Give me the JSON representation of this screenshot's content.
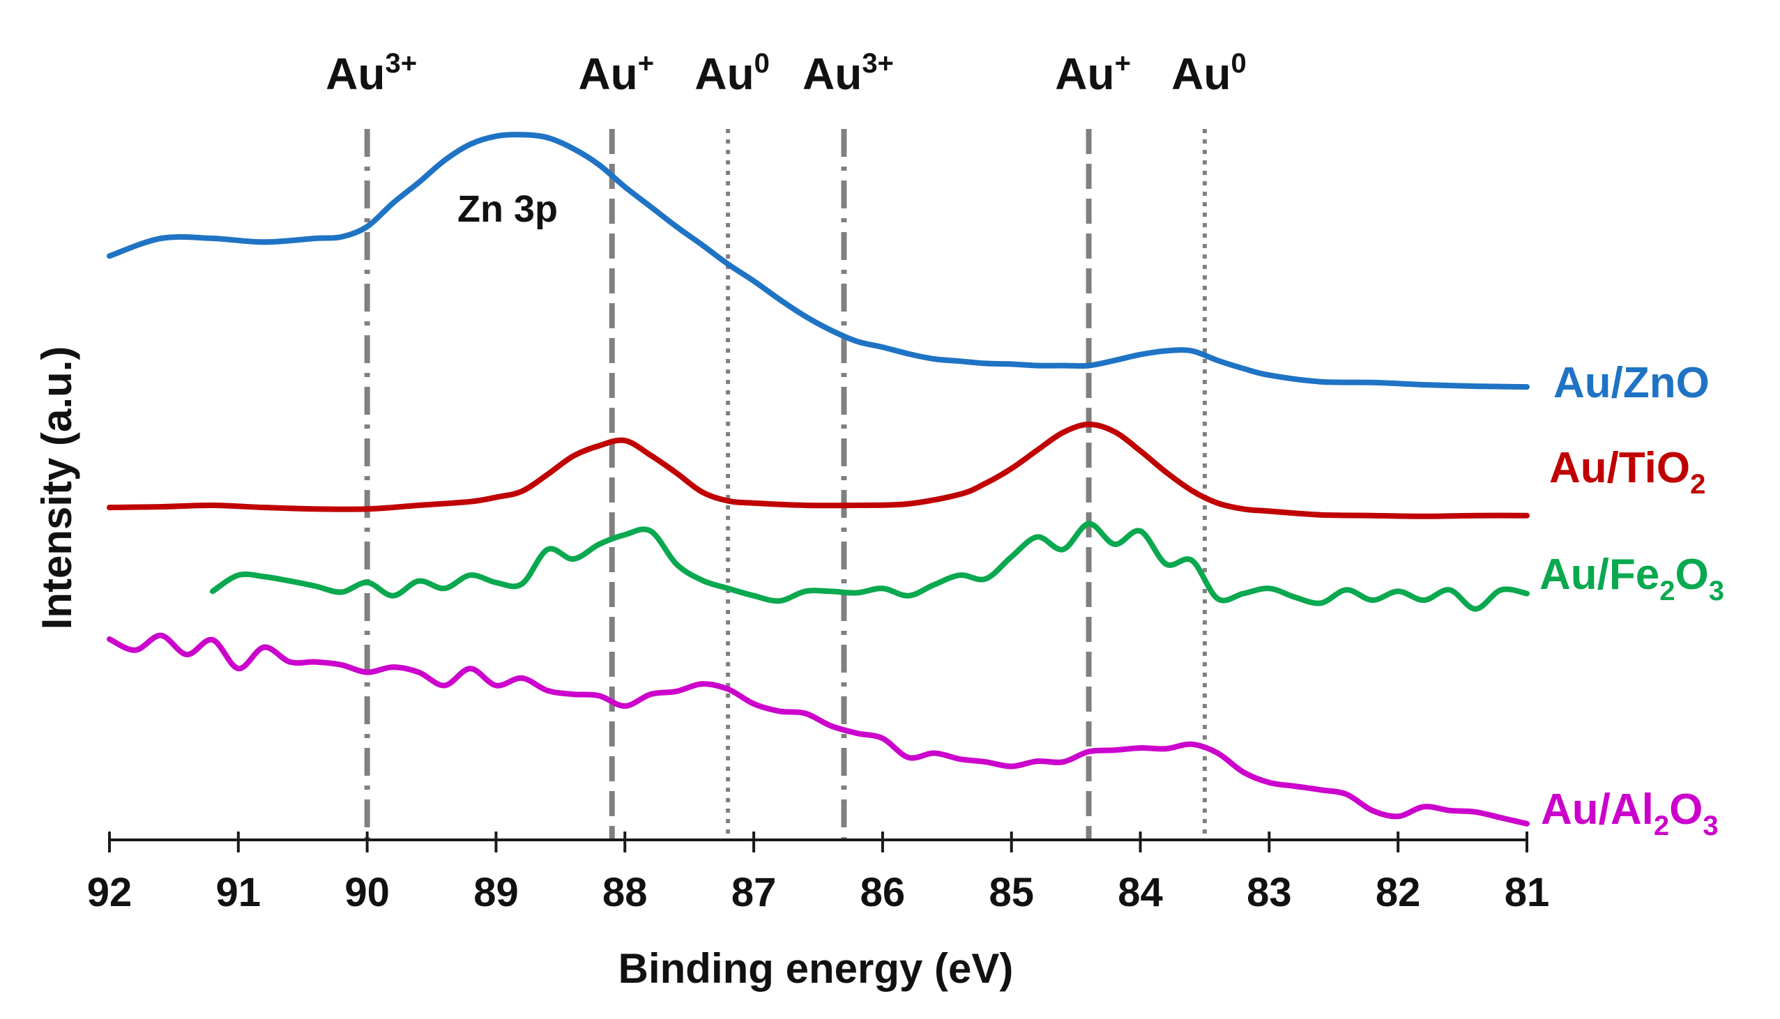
{
  "chart_data": {
    "type": "line",
    "title": "",
    "xlabel": "Binding energy (eV)",
    "ylabel": "Intensity (a.u.)",
    "xlim": [
      92,
      81
    ],
    "x_reversed": true,
    "ylim": [
      0,
      10
    ],
    "x_ticks": [
      "92",
      "91",
      "90",
      "89",
      "88",
      "87",
      "86",
      "85",
      "84",
      "83",
      "82",
      "81"
    ],
    "y_ticks_shown": false,
    "annotations": [
      {
        "text": "Zn 3p",
        "x": 88.8,
        "y": 8.1
      }
    ],
    "reference_lines": [
      {
        "x": 90.0,
        "style": "dash-dot",
        "label_base": "Au",
        "label_sup": "3+"
      },
      {
        "x": 88.1,
        "style": "dashed",
        "label_base": "Au",
        "label_sup": "+"
      },
      {
        "x": 87.2,
        "style": "dotted",
        "label_base": "Au",
        "label_sup": "0"
      },
      {
        "x": 86.3,
        "style": "dash-dot",
        "label_base": "Au",
        "label_sup": "3+"
      },
      {
        "x": 84.4,
        "style": "dashed",
        "label_base": "Au",
        "label_sup": "+"
      },
      {
        "x": 83.5,
        "style": "dotted",
        "label_base": "Au",
        "label_sup": "0"
      }
    ],
    "series": [
      {
        "name": "Au/ZnO",
        "label_parts": [
          {
            "t": "Au/ZnO"
          }
        ],
        "color": "#1f73c4",
        "x": [
          92.0,
          91.6,
          91.2,
          90.8,
          90.4,
          90.2,
          90.0,
          89.8,
          89.6,
          89.4,
          89.2,
          89.0,
          88.8,
          88.6,
          88.4,
          88.2,
          88.0,
          87.8,
          87.6,
          87.4,
          87.2,
          87.0,
          86.8,
          86.6,
          86.4,
          86.2,
          86.0,
          85.8,
          85.6,
          85.4,
          85.2,
          85.0,
          84.8,
          84.6,
          84.4,
          84.2,
          84.0,
          83.8,
          83.6,
          83.4,
          83.2,
          83.0,
          82.6,
          82.2,
          81.8,
          81.4,
          81.0
        ],
        "y": [
          7.94,
          8.18,
          8.18,
          8.13,
          8.18,
          8.2,
          8.34,
          8.66,
          8.94,
          9.24,
          9.46,
          9.57,
          9.59,
          9.55,
          9.4,
          9.18,
          8.88,
          8.61,
          8.34,
          8.09,
          7.83,
          7.6,
          7.35,
          7.12,
          6.93,
          6.78,
          6.7,
          6.61,
          6.54,
          6.51,
          6.48,
          6.47,
          6.45,
          6.45,
          6.45,
          6.52,
          6.6,
          6.65,
          6.65,
          6.52,
          6.41,
          6.32,
          6.23,
          6.22,
          6.19,
          6.17,
          6.16
        ]
      },
      {
        "name": "Au/TiO2",
        "label_parts": [
          {
            "t": "Au/TiO"
          },
          {
            "t": "2",
            "sub": true
          }
        ],
        "color": "#c00000",
        "x": [
          92.0,
          91.6,
          91.2,
          90.8,
          90.4,
          90.0,
          89.6,
          89.2,
          89.0,
          88.8,
          88.6,
          88.4,
          88.2,
          88.0,
          87.8,
          87.6,
          87.4,
          87.2,
          87.0,
          86.6,
          86.2,
          85.8,
          85.4,
          85.2,
          85.0,
          84.8,
          84.6,
          84.4,
          84.2,
          84.0,
          83.8,
          83.6,
          83.4,
          83.2,
          83.0,
          82.6,
          82.2,
          81.8,
          81.4,
          81.0
        ],
        "y": [
          4.52,
          4.53,
          4.55,
          4.52,
          4.5,
          4.5,
          4.55,
          4.6,
          4.66,
          4.74,
          4.97,
          5.22,
          5.36,
          5.43,
          5.23,
          4.99,
          4.73,
          4.61,
          4.58,
          4.55,
          4.55,
          4.57,
          4.7,
          4.85,
          5.05,
          5.3,
          5.54,
          5.65,
          5.55,
          5.29,
          5.0,
          4.75,
          4.58,
          4.5,
          4.47,
          4.42,
          4.41,
          4.4,
          4.41,
          4.41
        ]
      },
      {
        "name": "Au/Fe2O3",
        "label_parts": [
          {
            "t": "Au/Fe"
          },
          {
            "t": "2",
            "sub": true
          },
          {
            "t": "O"
          },
          {
            "t": "3",
            "sub": true
          }
        ],
        "color": "#0aa84f",
        "x": [
          91.2,
          91.0,
          90.8,
          90.6,
          90.4,
          90.2,
          90.0,
          89.8,
          89.6,
          89.4,
          89.2,
          89.0,
          88.8,
          88.6,
          88.4,
          88.2,
          88.0,
          87.8,
          87.6,
          87.4,
          87.2,
          87.0,
          86.8,
          86.6,
          86.4,
          86.2,
          86.0,
          85.8,
          85.6,
          85.4,
          85.2,
          85.0,
          84.8,
          84.6,
          84.4,
          84.2,
          84.0,
          83.8,
          83.6,
          83.4,
          83.2,
          83.0,
          82.8,
          82.6,
          82.4,
          82.2,
          82.0,
          81.8,
          81.6,
          81.4,
          81.2,
          81.0
        ],
        "y": [
          3.38,
          3.6,
          3.58,
          3.52,
          3.45,
          3.37,
          3.5,
          3.32,
          3.52,
          3.42,
          3.6,
          3.5,
          3.48,
          3.95,
          3.82,
          4.02,
          4.15,
          4.2,
          3.75,
          3.53,
          3.42,
          3.32,
          3.25,
          3.38,
          3.38,
          3.36,
          3.42,
          3.32,
          3.47,
          3.6,
          3.55,
          3.85,
          4.12,
          3.95,
          4.3,
          4.02,
          4.2,
          3.75,
          3.8,
          3.28,
          3.35,
          3.42,
          3.3,
          3.22,
          3.4,
          3.26,
          3.38,
          3.26,
          3.4,
          3.14,
          3.4,
          3.35
        ]
      },
      {
        "name": "Au/Al2O3",
        "label_parts": [
          {
            "t": "Au/Al"
          },
          {
            "t": "2",
            "sub": true
          },
          {
            "t": "O"
          },
          {
            "t": "3",
            "sub": true
          }
        ],
        "color": "#cc00cc",
        "x": [
          92.0,
          91.8,
          91.6,
          91.4,
          91.2,
          91.0,
          90.8,
          90.6,
          90.4,
          90.2,
          90.0,
          89.8,
          89.6,
          89.4,
          89.2,
          89.0,
          88.8,
          88.6,
          88.4,
          88.2,
          88.0,
          87.8,
          87.6,
          87.4,
          87.2,
          87.0,
          86.8,
          86.6,
          86.4,
          86.2,
          86.0,
          85.8,
          85.6,
          85.4,
          85.2,
          85.0,
          84.8,
          84.6,
          84.4,
          84.2,
          84.0,
          83.8,
          83.6,
          83.4,
          83.2,
          83.0,
          82.8,
          82.6,
          82.4,
          82.2,
          82.0,
          81.8,
          81.6,
          81.4,
          81.2,
          81.0
        ],
        "y": [
          2.73,
          2.58,
          2.78,
          2.52,
          2.72,
          2.33,
          2.62,
          2.42,
          2.42,
          2.38,
          2.28,
          2.35,
          2.28,
          2.1,
          2.33,
          2.1,
          2.2,
          2.03,
          1.98,
          1.96,
          1.82,
          1.98,
          2.02,
          2.12,
          2.05,
          1.85,
          1.75,
          1.72,
          1.55,
          1.45,
          1.38,
          1.12,
          1.18,
          1.1,
          1.06,
          1.0,
          1.07,
          1.06,
          1.2,
          1.22,
          1.25,
          1.24,
          1.3,
          1.18,
          0.92,
          0.78,
          0.73,
          0.68,
          0.62,
          0.4,
          0.32,
          0.45,
          0.4,
          0.38,
          0.3,
          0.22
        ]
      }
    ]
  }
}
